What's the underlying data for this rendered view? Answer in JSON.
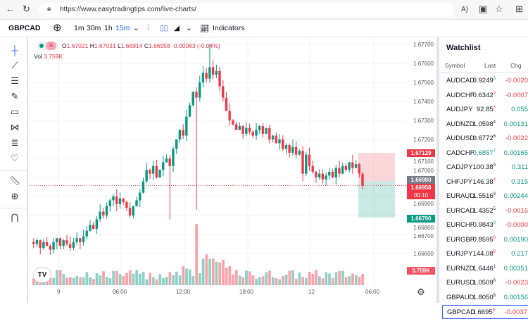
{
  "browser": {
    "url": "https://www.easytradingtips.com/live-charts/"
  },
  "toolbar": {
    "symbol": "GBPCAD",
    "intervals": [
      "1m",
      "30m",
      "1h",
      "15m"
    ],
    "active_interval": "15m",
    "indicators": "Indicators"
  },
  "legend": {
    "o_label": "O",
    "o": "1.67021",
    "h_label": "H",
    "h": "1.67031",
    "l_label": "L",
    "l": "1.66914",
    "c_label": "C",
    "c": "1.66958",
    "change": "-0.00063 (-0.04%)",
    "vol_label": "Vol",
    "vol": "3.759K"
  },
  "price_axis": [
    "1.67700",
    "1.67600",
    "1.67500",
    "1.67400",
    "1.67300",
    "1.67200",
    "1.67100",
    "1.67000",
    "1.66900",
    "1.66800",
    "1.66700",
    "1.66600"
  ],
  "tags": {
    "target": "1.67129",
    "entry": "1.66980",
    "last": "1.66958",
    "countdown": "00:10",
    "stop": "1.66790",
    "volume": "3.759K"
  },
  "time_axis": [
    "9",
    "06:00",
    "12:00",
    "18:00",
    "12",
    "06:00"
  ],
  "colors": {
    "up": "#089981",
    "down": "#f23645",
    "accent": "#2962ff"
  },
  "chart_data": {
    "type": "candlestick",
    "closes": [
      1.6665,
      1.6667,
      1.6663,
      1.6666,
      1.6664,
      1.6662,
      1.6666,
      1.6668,
      1.6664,
      1.6667,
      1.6665,
      1.6663,
      1.6666,
      1.6668,
      1.6666,
      1.6669,
      1.6672,
      1.6675,
      1.6673,
      1.6678,
      1.6682,
      1.668,
      1.6685,
      1.6688,
      1.669,
      1.6686,
      1.6689,
      1.6687,
      1.6684,
      1.668,
      1.6685,
      1.6688,
      1.6692,
      1.6698,
      1.6704,
      1.6702,
      1.6706,
      1.67,
      1.6704,
      1.6708,
      1.671,
      1.6706,
      1.6715,
      1.672,
      1.6725,
      1.6722,
      1.6732,
      1.6738,
      1.6745,
      1.6742,
      1.675,
      1.6755,
      1.6752,
      1.6758,
      1.6754,
      1.6756,
      1.6748,
      1.6742,
      1.6735,
      1.673,
      1.6728,
      1.6725,
      1.6727,
      1.6723,
      1.6726,
      1.6724,
      1.6722,
      1.6725,
      1.6727,
      1.6723,
      1.6726,
      1.672,
      1.6722,
      1.6718,
      1.672,
      1.6715,
      1.6717,
      1.6713,
      1.6716,
      1.6712,
      1.6714,
      1.6702,
      1.6712,
      1.6706,
      1.6703,
      1.67,
      1.6702,
      1.6699,
      1.6701,
      1.6703,
      1.67,
      1.6705,
      1.6702,
      1.6706,
      1.6704,
      1.6708,
      1.6705,
      1.6707,
      1.6702,
      1.66958
    ]
  },
  "watchlist": {
    "title": "Watchlist",
    "headers": [
      "Symbol",
      "Last",
      "Chg"
    ],
    "rows": [
      {
        "sym": "AUDCAD",
        "last": "0.9249",
        "sup": "3",
        "supdir": "up",
        "chg": "-0.0020",
        "dir": "dn"
      },
      {
        "sym": "AUDCHF",
        "last": "0.6342",
        "sup": "9",
        "supdir": "dn",
        "chg": "-0.0007",
        "dir": "dn"
      },
      {
        "sym": "AUDJPY",
        "last": "92.85",
        "sup": "3",
        "supdir": "dn",
        "chg": "0.055",
        "dir": "up"
      },
      {
        "sym": "AUDNZD",
        "last": "1.0598",
        "sup": "4",
        "supdir": "none",
        "chg": "0.00131",
        "dir": "up"
      },
      {
        "sym": "AUDUSD",
        "last": "0.6772",
        "sup": "6",
        "supdir": "none",
        "chg": "-0.0022",
        "dir": "dn"
      },
      {
        "sym": "CADCHF",
        "last": "0.6857",
        "sup": "7",
        "supdir": "up",
        "chg": "0.00165",
        "dir": "up"
      },
      {
        "sym": "CADJPY",
        "last": "100.38",
        "sup": "9",
        "supdir": "none",
        "chg": "0.311",
        "dir": "up"
      },
      {
        "sym": "CHFJPY",
        "last": "146.38",
        "sup": "4",
        "supdir": "dn",
        "chg": "0.315",
        "dir": "up"
      },
      {
        "sym": "EURAUD",
        "last": "1.5516",
        "sup": "9",
        "supdir": "none",
        "chg": "0.00244",
        "dir": "up"
      },
      {
        "sym": "EURCAD",
        "last": "1.4352",
        "sup": "5",
        "supdir": "none",
        "chg": "-0.0016",
        "dir": "dn"
      },
      {
        "sym": "EURCHF",
        "last": "0.9843",
        "sup": "0",
        "supdir": "up",
        "chg": "-0.0000",
        "dir": "dn"
      },
      {
        "sym": "EURGBP",
        "last": "0.8595",
        "sup": "8",
        "supdir": "dn",
        "chg": "0.00190",
        "dir": "up"
      },
      {
        "sym": "EURJPY",
        "last": "144.08",
        "sup": "8",
        "supdir": "dn",
        "chg": "0.217",
        "dir": "up"
      },
      {
        "sym": "EURNZD",
        "last": "1.6446",
        "sup": "1",
        "supdir": "none",
        "chg": "0.00351",
        "dir": "up"
      },
      {
        "sym": "EURUSD",
        "last": "1.0509",
        "sup": "6",
        "supdir": "none",
        "chg": "-0.0023",
        "dir": "dn"
      },
      {
        "sym": "GBPAUD",
        "last": "1.8050",
        "sup": "6",
        "supdir": "none",
        "chg": "0.00156",
        "dir": "up"
      },
      {
        "sym": "GBPCAD",
        "last": "1.6695",
        "sup": "8",
        "supdir": "dn",
        "chg": "-0.0037",
        "dir": "dn"
      }
    ]
  }
}
